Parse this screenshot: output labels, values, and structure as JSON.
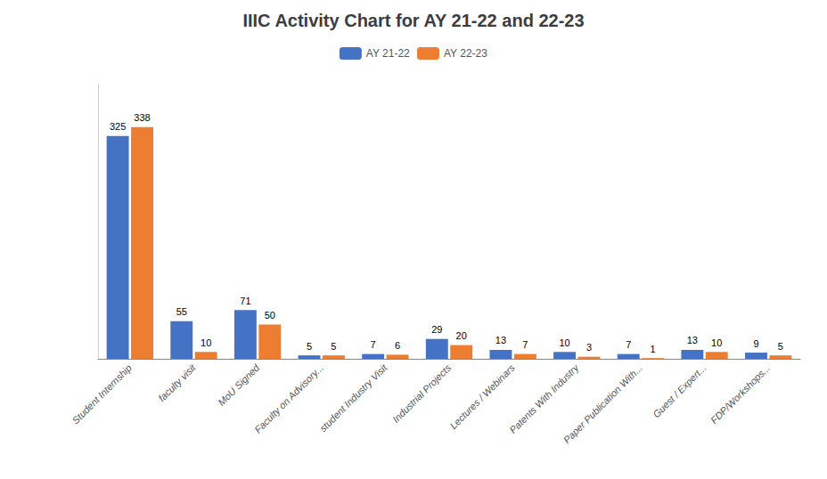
{
  "chart_data": {
    "type": "bar",
    "title": "IIIC Activity Chart for AY 21-22 and 22-23",
    "categories": [
      "Student Internship",
      "faculty visit",
      "MoU Signed",
      "Faculty on Advisory...",
      "student Industry Visit",
      "Industrial Projects",
      "Lectures / Webinars",
      "Patents With Industry",
      "Paper Publication With...",
      "Guest / Expert...",
      "FDP/Workshops..."
    ],
    "series": [
      {
        "name": "AY 21-22",
        "color": "#4472C4",
        "values": [
          325,
          55,
          71,
          5,
          7,
          29,
          13,
          10,
          7,
          13,
          9
        ]
      },
      {
        "name": "AY 22-23",
        "color": "#ED7D31",
        "values": [
          338,
          10,
          50,
          5,
          6,
          20,
          7,
          3,
          1,
          10,
          5
        ]
      }
    ],
    "ylim": [
      0,
      400
    ],
    "grid": false,
    "legend": "top",
    "data_labels": true,
    "tick_labels": "x"
  }
}
